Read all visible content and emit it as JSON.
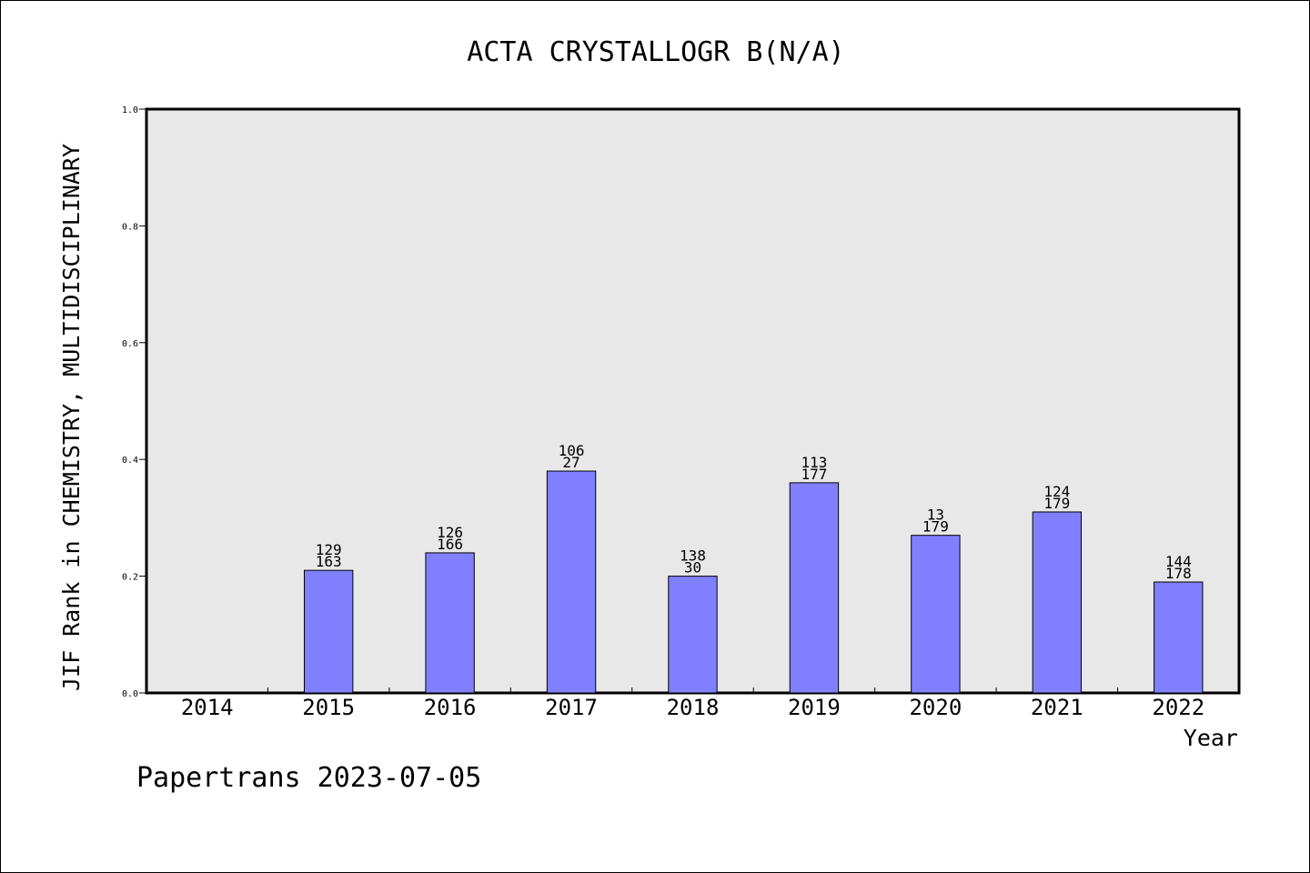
{
  "chart_data": {
    "type": "bar",
    "title": "ACTA CRYSTALLOGR B(N/A)",
    "xlabel": "Year",
    "ylabel": "JIF Rank in CHEMISTRY, MULTIDISCIPLINARY",
    "ylim": [
      0,
      1.0
    ],
    "yticks": [
      "0.0",
      "0.2",
      "0.4",
      "0.6",
      "0.8",
      "1.0"
    ],
    "categories": [
      "2014",
      "2015",
      "2016",
      "2017",
      "2018",
      "2019",
      "2020",
      "2021",
      "2022"
    ],
    "values": [
      null,
      0.21,
      0.24,
      0.38,
      0.2,
      0.36,
      0.27,
      0.31,
      0.19
    ],
    "bar_labels": [
      null,
      [
        "129",
        "163"
      ],
      [
        "126",
        "166"
      ],
      [
        "106",
        "27"
      ],
      [
        "138",
        "30"
      ],
      [
        "113",
        "177"
      ],
      [
        "13",
        "179"
      ],
      [
        "124",
        "179"
      ],
      [
        "144",
        "178"
      ]
    ],
    "bar_color": "#8080ff",
    "plot_background": "#e8e8e8",
    "grid": false,
    "legend": "none"
  },
  "footer": {
    "text": "Papertrans 2023-07-05"
  }
}
